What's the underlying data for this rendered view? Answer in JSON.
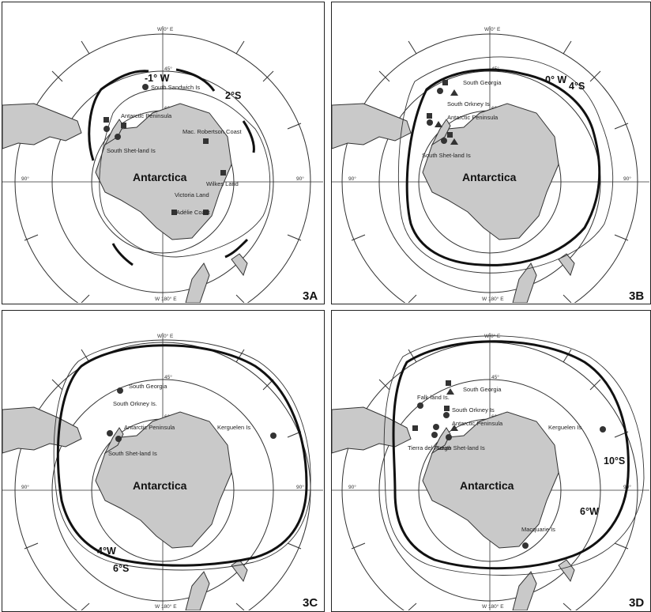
{
  "axis": {
    "top": "W 0° E",
    "bottom": "W 180° E",
    "left": "90°",
    "right": "90°",
    "lat1": "45°",
    "lat2": "60°"
  },
  "continent": "Antarctica",
  "panels": [
    {
      "id": "3A",
      "isolines": [
        {
          "label": "-1° W"
        },
        {
          "label": "2°S"
        }
      ],
      "places": [
        {
          "text": "South Sandwich Is"
        },
        {
          "text": "Antarctic Peninsula"
        },
        {
          "text": "South Shet-land Is"
        },
        {
          "text": "Mac. Robertson Coast"
        },
        {
          "text": "Wilkes Land"
        },
        {
          "text": "Victoria Land"
        },
        {
          "text": "Adélie Coast"
        }
      ]
    },
    {
      "id": "3B",
      "isolines": [
        {
          "label": "0° W"
        },
        {
          "label": "4°S"
        }
      ],
      "places": [
        {
          "text": "South Georgia"
        },
        {
          "text": "South Orkney Is"
        },
        {
          "text": "Antarctic Peninsula"
        },
        {
          "text": "South Shet-land Is"
        }
      ]
    },
    {
      "id": "3C",
      "isolines": [
        {
          "label": "4°W"
        },
        {
          "label": "6°S"
        }
      ],
      "places": [
        {
          "text": "South Georgia"
        },
        {
          "text": "South Orkney Is."
        },
        {
          "text": "Antarctic Peninsula"
        },
        {
          "text": "Kerguelen Is"
        },
        {
          "text": "South Shet-land Is"
        }
      ]
    },
    {
      "id": "3D",
      "isolines": [
        {
          "label": "10°S"
        },
        {
          "label": "6°W"
        }
      ],
      "places": [
        {
          "text": "South Georgia"
        },
        {
          "text": "Falk-land Is."
        },
        {
          "text": "South Orkney Is"
        },
        {
          "text": "Antarctic Peninsula"
        },
        {
          "text": "Tierra del Fuego"
        },
        {
          "text": "South Shet-land Is"
        },
        {
          "text": "Kerguelen Is"
        },
        {
          "text": "Macquarie Is"
        }
      ]
    }
  ]
}
